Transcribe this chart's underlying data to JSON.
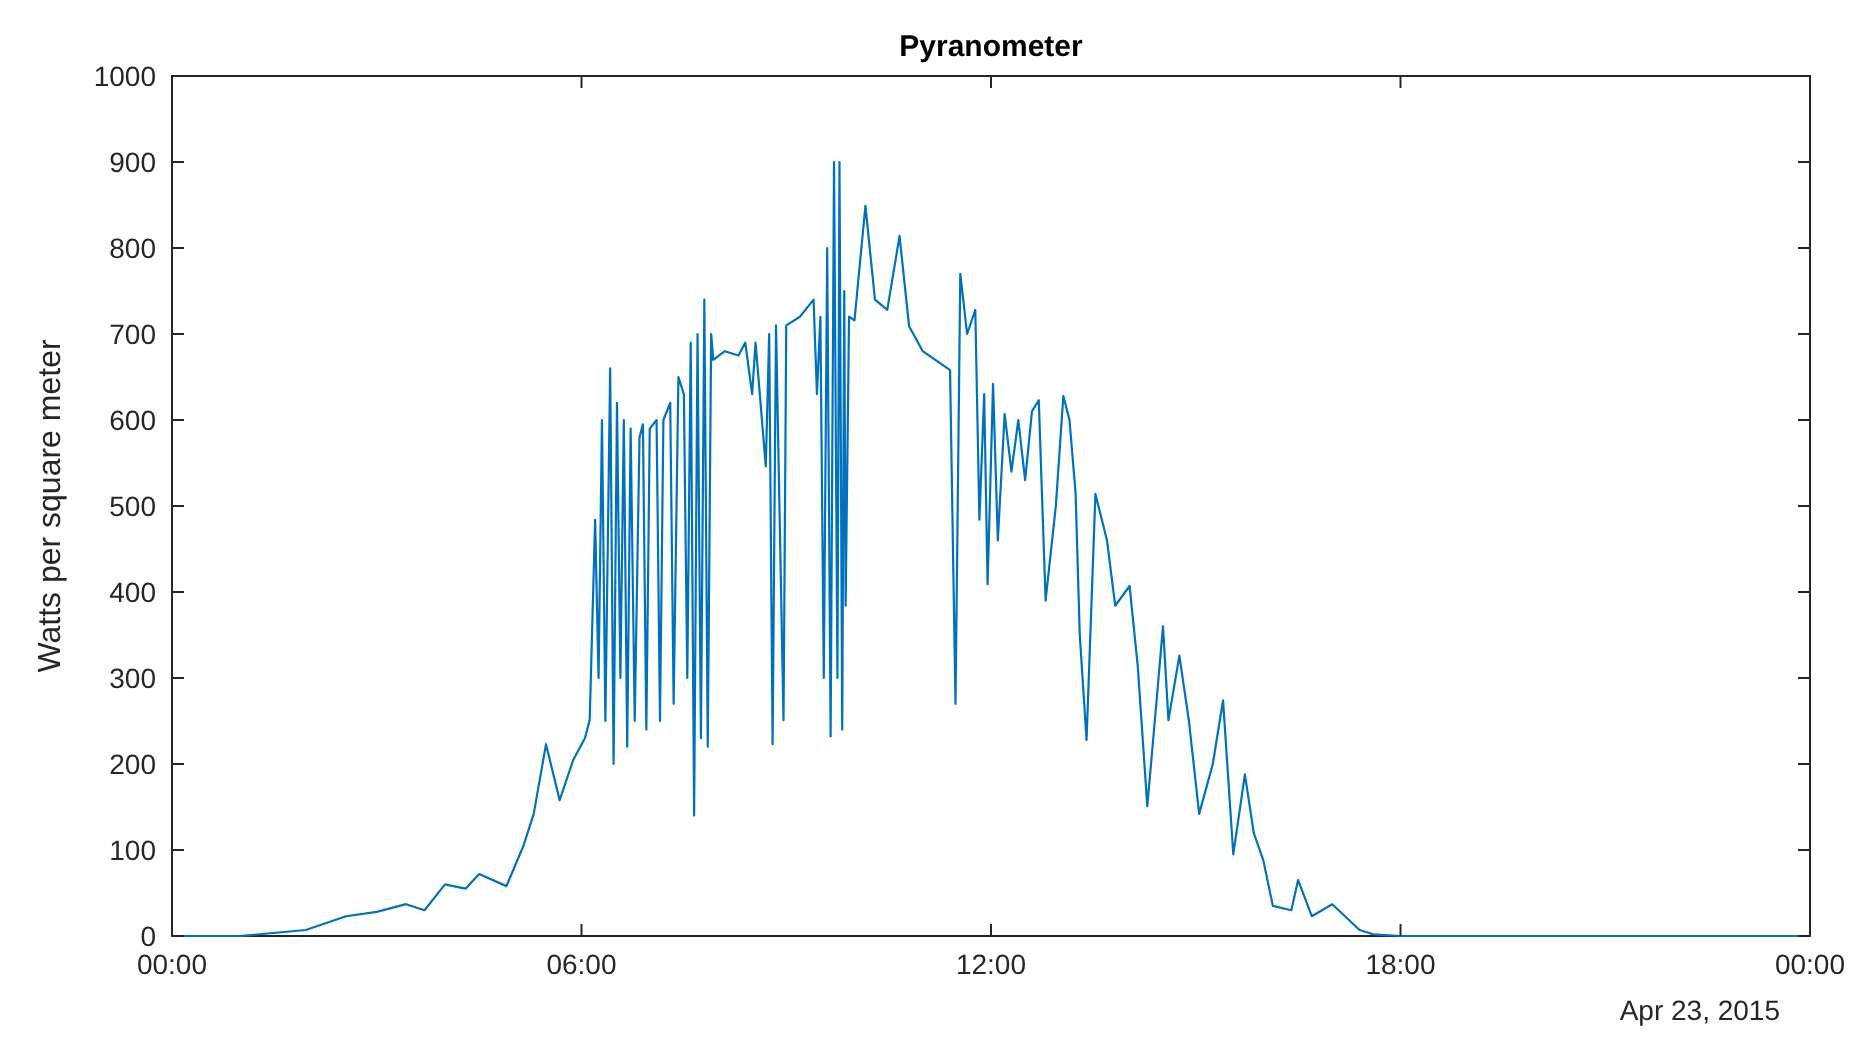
{
  "chart_data": {
    "type": "line",
    "title": "Pyranometer",
    "ylabel": "Watts per square meter",
    "annotations": [
      "Apr 23, 2015"
    ],
    "x": [
      0,
      1,
      1.96,
      2.55,
      3.0,
      3.43,
      3.7,
      4.0,
      4.3,
      4.5,
      4.9,
      5.15,
      5.3,
      5.48,
      5.68,
      5.88,
      6.05,
      6.12,
      6.2,
      6.25,
      6.3,
      6.35,
      6.42,
      6.47,
      6.52,
      6.57,
      6.62,
      6.67,
      6.72,
      6.78,
      6.85,
      6.9,
      6.95,
      7.0,
      7.1,
      7.15,
      7.2,
      7.3,
      7.35,
      7.42,
      7.5,
      7.55,
      7.6,
      7.65,
      7.7,
      7.75,
      7.8,
      7.85,
      7.9,
      7.93,
      8.1,
      8.3,
      8.4,
      8.5,
      8.55,
      8.7,
      8.75,
      8.8,
      8.85,
      8.96,
      9.0,
      9.2,
      9.4,
      9.45,
      9.5,
      9.55,
      9.6,
      9.65,
      9.7,
      9.75,
      9.78,
      9.82,
      9.85,
      9.87,
      9.92,
      10.0,
      10.16,
      10.3,
      10.48,
      10.66,
      10.8,
      11.0,
      11.4,
      11.48,
      11.55,
      11.65,
      11.77,
      11.83,
      11.9,
      11.95,
      12.03,
      12.1,
      12.2,
      12.3,
      12.4,
      12.5,
      12.6,
      12.7,
      12.8,
      12.95,
      13.06,
      13.15,
      13.24,
      13.3,
      13.4,
      13.53,
      13.7,
      13.82,
      14.03,
      14.15,
      14.29,
      14.4,
      14.52,
      14.6,
      14.76,
      14.9,
      15.05,
      15.25,
      15.4,
      15.55,
      15.72,
      15.85,
      15.99,
      16.13,
      16.4,
      16.5,
      16.7,
      17.0,
      17.4,
      17.6,
      18,
      24
    ],
    "series": [
      {
        "color": "#0072bd",
        "values": [
          0,
          0,
          7,
          23,
          28,
          37,
          30,
          60,
          55,
          72,
          58,
          105,
          142,
          223,
          158,
          205,
          230,
          251,
          484,
          300,
          600,
          250,
          660,
          200,
          620,
          300,
          600,
          220,
          590,
          250,
          580,
          595,
          240,
          590,
          600,
          250,
          600,
          620,
          270,
          650,
          630,
          300,
          690,
          140,
          700,
          230,
          740,
          220,
          700,
          670,
          680,
          675,
          690,
          630,
          690,
          546,
          700,
          223,
          710,
          251,
          710,
          720,
          740,
          630,
          720,
          300,
          800,
          232,
          900,
          300,
          900,
          240,
          750,
          384,
          720,
          716,
          849,
          740,
          728,
          814,
          709,
          680,
          658,
          270,
          770,
          700,
          728,
          484,
          630,
          409,
          642,
          460,
          607,
          540,
          600,
          530,
          610,
          623,
          390,
          500,
          628,
          600,
          514,
          351,
          228,
          514,
          460,
          384,
          407,
          314,
          151,
          250,
          360,
          251,
          326,
          250,
          142,
          200,
          274,
          95,
          188,
          120,
          88,
          35,
          30,
          65,
          23,
          37,
          7,
          2,
          0,
          0
        ]
      }
    ],
    "xlim": [
      0,
      24
    ],
    "xticks": [
      {
        "value": 0,
        "label": "00:00"
      },
      {
        "value": 6,
        "label": "06:00"
      },
      {
        "value": 12,
        "label": "12:00"
      },
      {
        "value": 18,
        "label": "18:00"
      },
      {
        "value": 24,
        "label": "00:00"
      }
    ],
    "ylim": [
      0,
      1000
    ],
    "yticks": [
      0,
      100,
      200,
      300,
      400,
      500,
      600,
      700,
      800,
      900,
      1000
    ],
    "grid": false,
    "line_style": "solid"
  }
}
